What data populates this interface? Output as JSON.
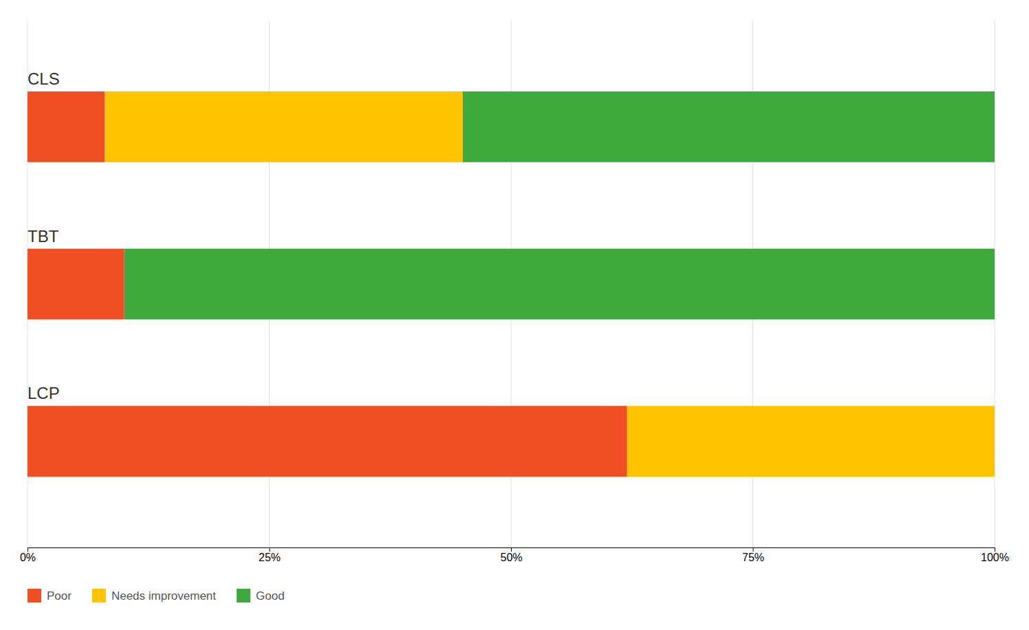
{
  "chart_data": {
    "type": "bar",
    "orientation": "horizontal",
    "stacked": true,
    "categories": [
      "LCP",
      "TBT",
      "CLS"
    ],
    "series": [
      {
        "name": "Poor",
        "color": "#F04E23",
        "values": [
          62,
          10,
          8
        ]
      },
      {
        "name": "Needs improvement",
        "color": "#FFC400",
        "values": [
          38,
          0,
          37
        ]
      },
      {
        "name": "Good",
        "color": "#3DAA3D",
        "values": [
          0,
          90,
          55
        ]
      }
    ],
    "xlim": [
      0,
      100
    ],
    "xticks": [
      {
        "value": 0,
        "label": "0%"
      },
      {
        "value": 25,
        "label": "25%"
      },
      {
        "value": 50,
        "label": "50%"
      },
      {
        "value": 75,
        "label": "75%"
      },
      {
        "value": 100,
        "label": "100%"
      }
    ],
    "grid": true,
    "legend": "lower left"
  }
}
